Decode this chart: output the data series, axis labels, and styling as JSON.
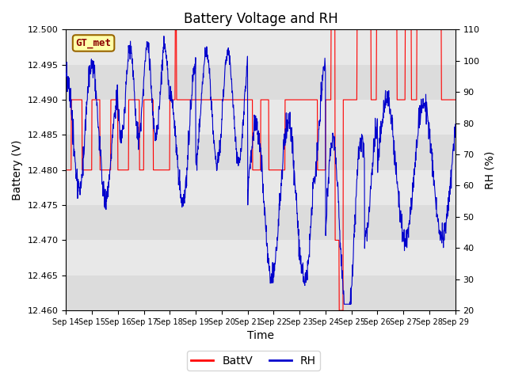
{
  "title": "Battery Voltage and RH",
  "xlabel": "Time",
  "ylabel_left": "Battery (V)",
  "ylabel_right": "RH (%)",
  "ylim_left": [
    12.46,
    12.5
  ],
  "ylim_right": [
    20,
    110
  ],
  "yticks_left": [
    12.46,
    12.465,
    12.47,
    12.475,
    12.48,
    12.485,
    12.49,
    12.495,
    12.5
  ],
  "yticks_right": [
    20,
    30,
    40,
    50,
    60,
    70,
    80,
    90,
    100,
    110
  ],
  "xtick_labels": [
    "Sep 14",
    "Sep 15",
    "Sep 16",
    "Sep 17",
    "Sep 18",
    "Sep 19",
    "Sep 20",
    "Sep 21",
    "Sep 22",
    "Sep 23",
    "Sep 24",
    "Sep 25",
    "Sep 26",
    "Sep 27",
    "Sep 28",
    "Sep 29"
  ],
  "color_battv": "#FF0000",
  "color_rh": "#0000CC",
  "legend_label_battv": "BattV",
  "legend_label_rh": "RH",
  "watermark_label": "GT_met",
  "plot_bg_color": "#E8E8E8",
  "band_color_light": "#DCDCDC",
  "band_color_dark": "#C8C8C8",
  "title_fontsize": 12,
  "axis_label_fontsize": 10,
  "tick_fontsize": 8
}
